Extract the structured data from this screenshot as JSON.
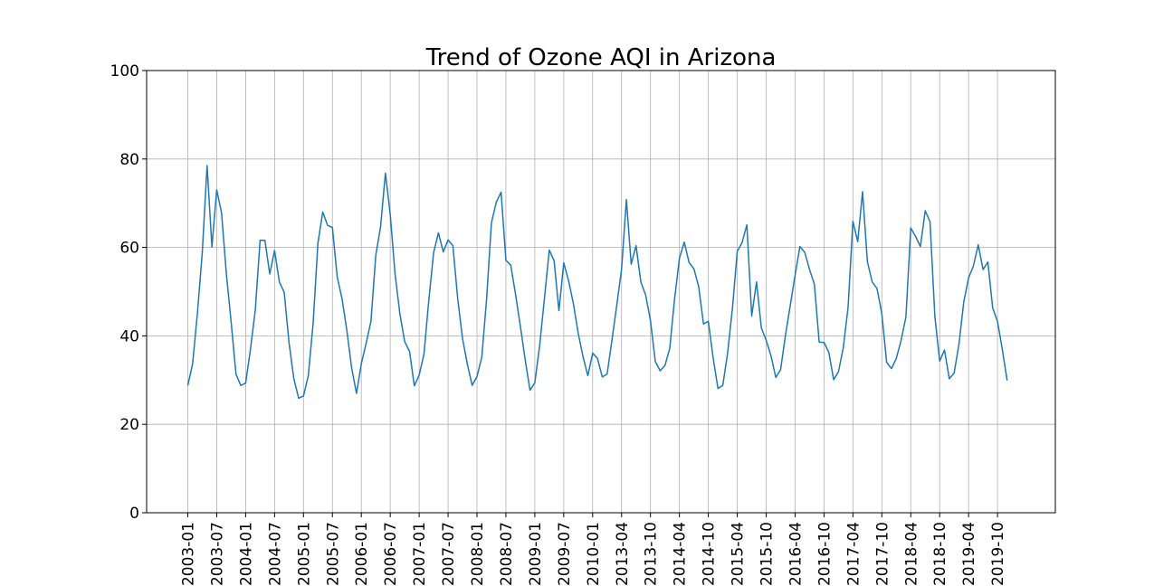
{
  "chart_data": {
    "type": "line",
    "title": "Trend of Ozone AQI in Arizona",
    "xlabel": "",
    "ylabel": "",
    "ylim": [
      0,
      100
    ],
    "y_ticks": [
      0,
      20,
      40,
      60,
      80,
      100
    ],
    "x_tick_labels": [
      "2003-01",
      "2003-07",
      "2004-01",
      "2004-07",
      "2005-01",
      "2005-07",
      "2006-01",
      "2006-07",
      "2007-01",
      "2007-07",
      "2008-01",
      "2008-07",
      "2009-01",
      "2009-07",
      "2010-01",
      "2013-04",
      "2013-10",
      "2014-04",
      "2014-10",
      "2015-04",
      "2015-10",
      "2016-04",
      "2016-10",
      "2017-04",
      "2017-10",
      "2018-04",
      "2018-10",
      "2019-04",
      "2019-10"
    ],
    "grid": true,
    "line_color": "#1f77b4",
    "series": [
      {
        "values": [
          28.8,
          33.7,
          45.2,
          58.8,
          78.5,
          60.1,
          73.0,
          67.8,
          54.0,
          43.0,
          31.3,
          28.8,
          29.3,
          37.0,
          45.8,
          61.6,
          61.6,
          54.0,
          59.3,
          52.2,
          49.8,
          38.5,
          30.3,
          25.9,
          26.4,
          31.0,
          42.8,
          61.0,
          68.0,
          65.0,
          64.5,
          53.3,
          48.4,
          41.2,
          32.7,
          27.0,
          33.7,
          38.3,
          43.3,
          58.2,
          64.7,
          76.8,
          67.5,
          54.0,
          45.0,
          38.7,
          36.5,
          28.7,
          31.1,
          35.9,
          48.0,
          58.8,
          63.3,
          59.0,
          61.7,
          60.4,
          48.4,
          39.4,
          33.6,
          28.8,
          30.8,
          35.2,
          48.4,
          65.6,
          70.2,
          72.5,
          57.1,
          56.0,
          49.4,
          42.2,
          34.6,
          27.7,
          29.4,
          37.8,
          48.5,
          59.4,
          57.0,
          45.7,
          56.5,
          52.5,
          47.3,
          40.6,
          35.3,
          31.0,
          36.1,
          34.9,
          30.7,
          31.4,
          39.0,
          46.9,
          55.1,
          70.8,
          56.2,
          60.4,
          52.2,
          49.2,
          43.4,
          34.2,
          32.1,
          33.3,
          37.2,
          48.4,
          57.5,
          61.2,
          56.6,
          55.2,
          51.1,
          42.7,
          43.3,
          35.0,
          28.1,
          28.8,
          36.1,
          46.2,
          59.1,
          61.1,
          65.1,
          44.5,
          52.2,
          41.8,
          39.0,
          35.5,
          30.6,
          32.4,
          40.1,
          46.9,
          53.7,
          60.2,
          58.9,
          55.0,
          51.7,
          38.6,
          38.5,
          36.3,
          30.1,
          31.9,
          37.3,
          46.5,
          65.9,
          61.3,
          72.6,
          56.8,
          52.2,
          50.7,
          45.0,
          34.0,
          32.6,
          34.9,
          39.0,
          44.3,
          64.4,
          62.5,
          60.2,
          68.3,
          65.8,
          44.4,
          34.3,
          36.8,
          30.3,
          31.6,
          38.1,
          47.7,
          53.1,
          55.8,
          60.6,
          55.0,
          56.7,
          46.3,
          43.3,
          36.9,
          29.9
        ]
      }
    ]
  }
}
